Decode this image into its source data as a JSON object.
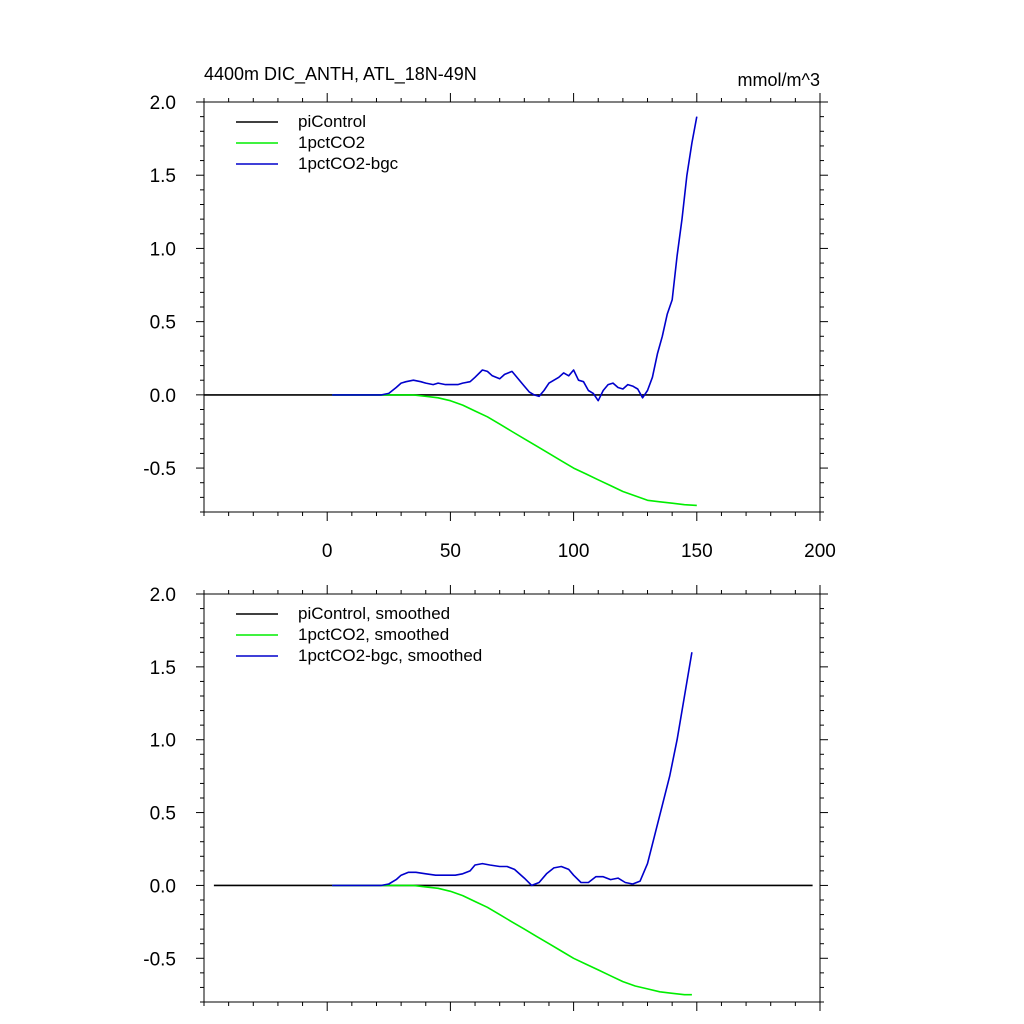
{
  "figure": {
    "title_left": "4400m DIC_ANTH, ATL_18N-49N",
    "title_right": "mmol/m^3"
  },
  "chart_data": [
    {
      "type": "line",
      "xlim": [
        -50,
        200
      ],
      "ylim": [
        -0.8,
        2.0
      ],
      "x_ticks": [
        0,
        50,
        100,
        150,
        200
      ],
      "x_tick_labels": [
        "0",
        "50",
        "100",
        "150",
        "200"
      ],
      "y_ticks": [
        2.0,
        1.5,
        1.0,
        0.5,
        0.0,
        -0.5
      ],
      "y_tick_labels": [
        "2.0",
        "1.5",
        "1.0",
        "0.5",
        "0.0",
        "-0.5"
      ],
      "legend_position": "top-left",
      "series": [
        {
          "name": "piControl",
          "color": "#000000",
          "x": [
            -50,
            200
          ],
          "y": [
            0.0,
            0.0
          ]
        },
        {
          "name": "1pctCO2",
          "color": "#00ee00",
          "x": [
            2,
            20,
            30,
            35,
            40,
            45,
            50,
            55,
            60,
            65,
            70,
            75,
            80,
            85,
            90,
            95,
            100,
            105,
            110,
            115,
            120,
            125,
            130,
            135,
            140,
            145,
            150
          ],
          "y": [
            0.0,
            0.0,
            0.0,
            0.0,
            -0.01,
            -0.02,
            -0.04,
            -0.07,
            -0.11,
            -0.15,
            -0.2,
            -0.25,
            -0.3,
            -0.35,
            -0.4,
            -0.45,
            -0.5,
            -0.54,
            -0.58,
            -0.62,
            -0.66,
            -0.69,
            -0.72,
            -0.73,
            -0.74,
            -0.75,
            -0.755
          ]
        },
        {
          "name": "1pctCO2-bgc",
          "color": "#0000cc",
          "x": [
            2,
            20,
            22,
            25,
            28,
            30,
            32,
            35,
            38,
            40,
            43,
            45,
            48,
            50,
            53,
            55,
            58,
            60,
            63,
            65,
            67,
            70,
            72,
            75,
            77,
            80,
            82,
            84,
            86,
            88,
            90,
            92,
            94,
            96,
            98,
            100,
            102,
            104,
            106,
            108,
            110,
            112,
            114,
            116,
            118,
            120,
            122,
            124,
            126,
            128,
            130,
            132,
            134,
            136,
            138,
            140,
            142,
            144,
            146,
            148,
            150
          ],
          "y": [
            0.0,
            0.0,
            0.0,
            0.01,
            0.05,
            0.08,
            0.09,
            0.1,
            0.09,
            0.08,
            0.07,
            0.08,
            0.07,
            0.07,
            0.07,
            0.08,
            0.09,
            0.12,
            0.17,
            0.16,
            0.13,
            0.11,
            0.14,
            0.16,
            0.12,
            0.06,
            0.02,
            0.0,
            -0.01,
            0.03,
            0.08,
            0.1,
            0.12,
            0.15,
            0.13,
            0.17,
            0.1,
            0.09,
            0.03,
            0.01,
            -0.04,
            0.03,
            0.07,
            0.08,
            0.05,
            0.04,
            0.07,
            0.06,
            0.04,
            -0.02,
            0.03,
            0.12,
            0.28,
            0.4,
            0.55,
            0.65,
            0.95,
            1.2,
            1.5,
            1.72,
            1.9
          ]
        }
      ]
    },
    {
      "type": "line",
      "xlim": [
        -50,
        200
      ],
      "ylim": [
        -0.8,
        2.0
      ],
      "x_ticks": [
        0,
        50,
        100,
        150,
        200
      ],
      "y_ticks": [
        2.0,
        1.5,
        1.0,
        0.5,
        0.0,
        -0.5
      ],
      "y_tick_labels": [
        "2.0",
        "1.5",
        "1.0",
        "0.5",
        "0.0",
        "-0.5"
      ],
      "legend_position": "top-left",
      "series": [
        {
          "name": "piControl, smoothed",
          "color": "#000000",
          "x": [
            -46,
            197
          ],
          "y": [
            0.0,
            0.0
          ]
        },
        {
          "name": "1pctCO2, smoothed",
          "color": "#00ee00",
          "x": [
            2,
            20,
            30,
            35,
            40,
            45,
            50,
            55,
            60,
            65,
            70,
            75,
            80,
            85,
            90,
            95,
            100,
            105,
            110,
            115,
            120,
            125,
            130,
            135,
            140,
            145,
            148
          ],
          "y": [
            0.0,
            0.0,
            0.0,
            0.0,
            -0.01,
            -0.02,
            -0.04,
            -0.07,
            -0.11,
            -0.15,
            -0.2,
            -0.25,
            -0.3,
            -0.35,
            -0.4,
            -0.45,
            -0.5,
            -0.54,
            -0.58,
            -0.62,
            -0.66,
            -0.69,
            -0.71,
            -0.73,
            -0.74,
            -0.75,
            -0.75
          ]
        },
        {
          "name": "1pctCO2-bgc, smoothed",
          "color": "#0000cc",
          "x": [
            2,
            20,
            22,
            25,
            28,
            30,
            33,
            36,
            40,
            44,
            48,
            52,
            55,
            58,
            60,
            63,
            66,
            70,
            73,
            76,
            80,
            83,
            86,
            89,
            92,
            95,
            98,
            100,
            103,
            106,
            109,
            112,
            115,
            118,
            121,
            124,
            127,
            130,
            133,
            136,
            139,
            142,
            145,
            148
          ],
          "y": [
            0.0,
            0.0,
            0.0,
            0.01,
            0.04,
            0.07,
            0.09,
            0.09,
            0.08,
            0.07,
            0.07,
            0.07,
            0.08,
            0.1,
            0.14,
            0.15,
            0.14,
            0.13,
            0.13,
            0.11,
            0.05,
            0.0,
            0.02,
            0.08,
            0.12,
            0.13,
            0.11,
            0.07,
            0.02,
            0.02,
            0.06,
            0.06,
            0.04,
            0.05,
            0.02,
            0.01,
            0.03,
            0.15,
            0.35,
            0.55,
            0.75,
            1.0,
            1.3,
            1.6
          ]
        }
      ]
    }
  ]
}
